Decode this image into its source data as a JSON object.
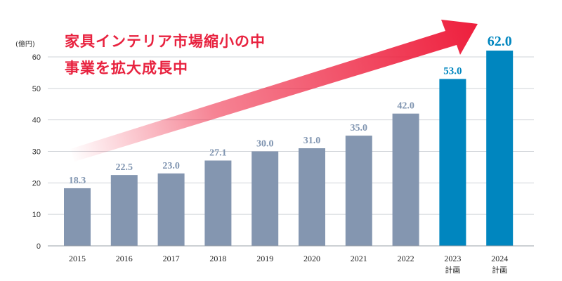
{
  "chart_data": {
    "type": "bar",
    "unit_label": "(億円)",
    "categories": [
      "2015",
      "2016",
      "2017",
      "2018",
      "2019",
      "2020",
      "2021",
      "2022",
      "2023",
      "2024"
    ],
    "category_sublabels": [
      "",
      "",
      "",
      "",
      "",
      "",
      "",
      "",
      "計画",
      "計画"
    ],
    "values": [
      18.3,
      22.5,
      23.0,
      27.1,
      30.0,
      31.0,
      35.0,
      42.0,
      53.0,
      62.0
    ],
    "value_labels": [
      "18.3",
      "22.5",
      "23.0",
      "27.1",
      "30.0",
      "31.0",
      "35.0",
      "42.0",
      "53.0",
      "62.0"
    ],
    "planned": [
      false,
      false,
      false,
      false,
      false,
      false,
      false,
      false,
      true,
      true
    ],
    "ylim": [
      0,
      65
    ],
    "yticks": [
      0,
      10,
      20,
      30,
      40,
      50,
      60
    ],
    "grid": true,
    "headline": [
      "家具インテリア市場縮小の中",
      "事業を拡大成長中"
    ],
    "colors": {
      "actual_bar": "#8496b0",
      "planned_bar": "#0086bf",
      "actual_label": "#7f94b0",
      "planned_label": "#0086bf",
      "arrow": "#ee1f3d",
      "headline": "#e8223f",
      "grid": "#cfd3d8"
    }
  }
}
